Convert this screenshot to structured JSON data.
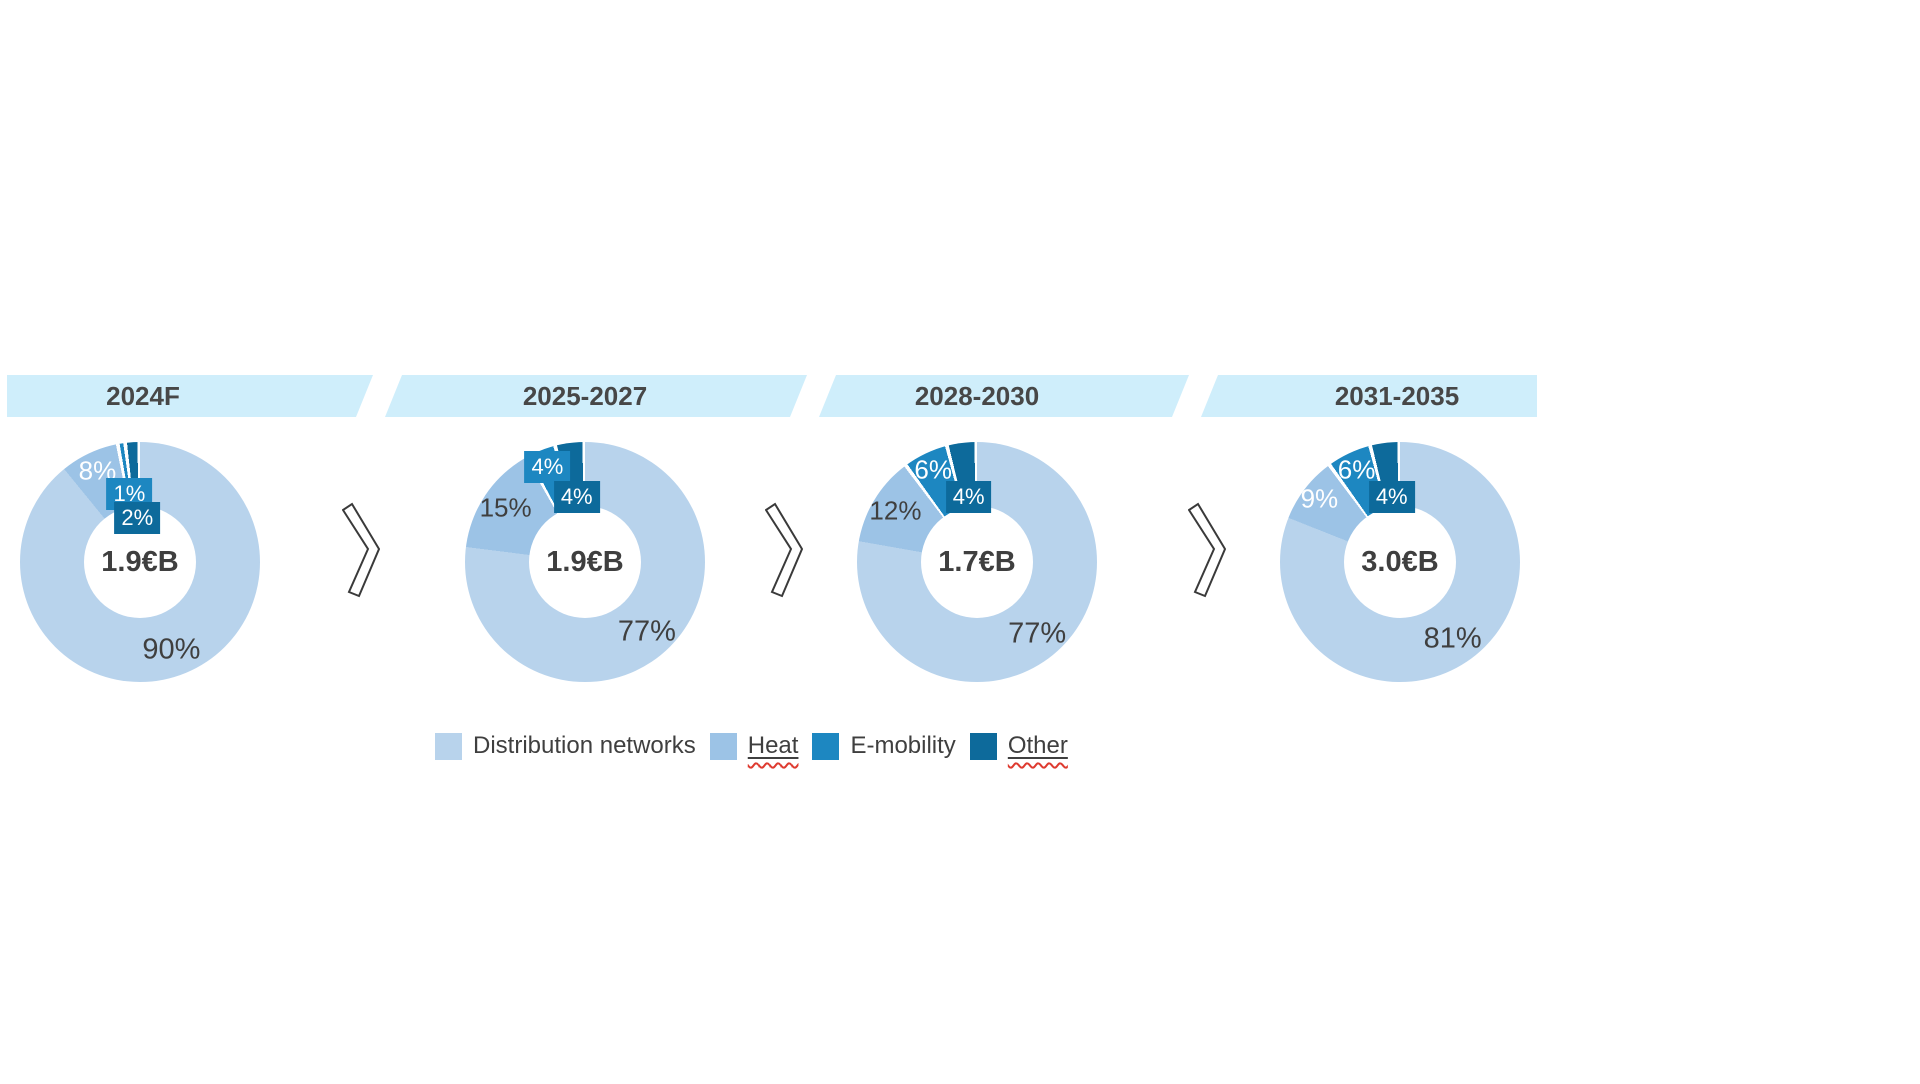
{
  "chart_data": {
    "type": "pie",
    "subtype": "donut-timeline",
    "categories": [
      "Distribution networks",
      "Heat",
      "E-mobility",
      "Other"
    ],
    "colors": {
      "distribution_networks": "#b8d3ec",
      "heat": "#9cc3e6",
      "e_mobility": "#1d87c1",
      "other": "#0d6a9b",
      "band": "#cfeefb",
      "label_gray": "#3f3f3f",
      "label_white": "#ffffff"
    },
    "legend_position": "bottom",
    "donuts": [
      {
        "period": "2024F",
        "center_total": "1.9€B",
        "values": [
          90,
          8,
          1,
          2
        ],
        "value_labels": [
          "90%",
          "8%",
          "1%",
          "2%"
        ]
      },
      {
        "period": "2025-2027",
        "center_total": "1.9€B",
        "values": [
          77,
          15,
          4,
          4
        ],
        "value_labels": [
          "77%",
          "15%",
          "4%",
          "4%"
        ]
      },
      {
        "period": "2028-2030",
        "center_total": "1.7€B",
        "values": [
          77,
          12,
          6,
          4
        ],
        "value_labels": [
          "77%",
          "12%",
          "6%",
          "4%"
        ]
      },
      {
        "period": "2031-2035",
        "center_total": "3.0€B",
        "values": [
          81,
          9,
          6,
          4
        ],
        "value_labels": [
          "81%",
          "9%",
          "6%",
          "4%"
        ]
      }
    ]
  },
  "legend": {
    "items": [
      {
        "label": "Distribution networks",
        "color": "#b8d3ec",
        "spellcheck_underline": false
      },
      {
        "label": "Heat",
        "color": "#9cc3e6",
        "spellcheck_underline": true
      },
      {
        "label": "E-mobility",
        "color": "#1d87c1",
        "spellcheck_underline": false
      },
      {
        "label": "Other",
        "color": "#0d6a9b",
        "spellcheck_underline": true
      }
    ]
  }
}
